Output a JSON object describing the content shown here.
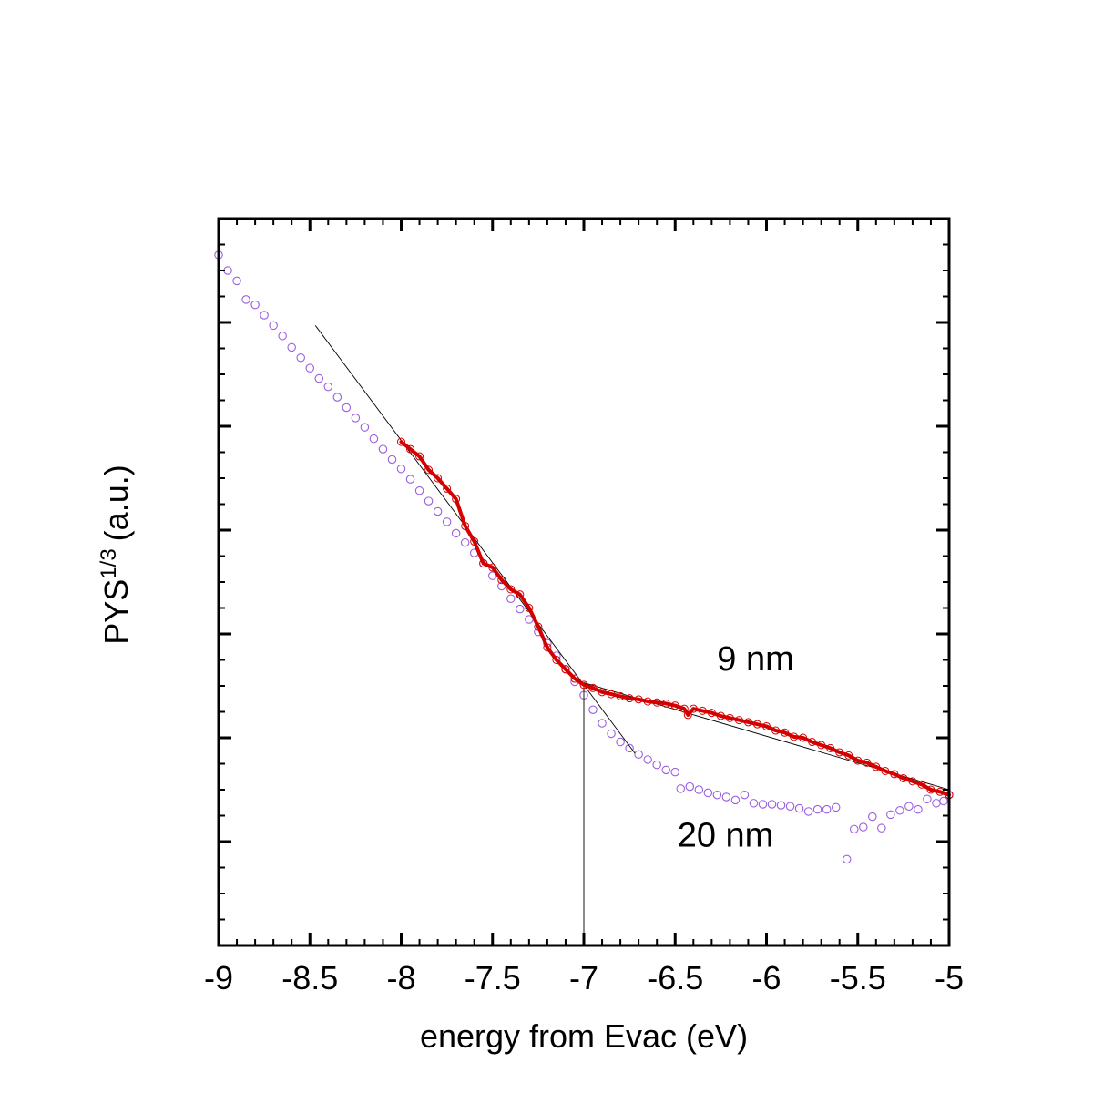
{
  "chart_data": {
    "type": "scatter",
    "title": "",
    "xlabel": "energy from Evac (eV)",
    "ylabel_main": "PYS",
    "ylabel_sup": "1/3",
    "ylabel_unit": "(a.u.)",
    "xlim": [
      -9,
      -5
    ],
    "ylim": [
      0,
      7
    ],
    "x_ticks": [
      -9,
      -8.5,
      -8,
      -7.5,
      -7,
      -6.5,
      -6,
      -5.5,
      -5
    ],
    "x_tick_labels": [
      "-9",
      "-8.5",
      "-8",
      "-7.5",
      "-7",
      "-6.5",
      "-6",
      "-5.5",
      "-5"
    ],
    "y_tick_labels_shown": false,
    "grid": false,
    "annotations": [
      "9 nm",
      "20 nm"
    ],
    "colors": {
      "nm9": "#d40000",
      "nm20": "#9a5fe0",
      "fit": "#000000"
    },
    "series": [
      {
        "name": "9 nm",
        "style": "line-with-markers",
        "points": [
          [
            -8.0,
            4.85
          ],
          [
            -7.95,
            4.78
          ],
          [
            -7.9,
            4.71
          ],
          [
            -7.85,
            4.58
          ],
          [
            -7.8,
            4.5
          ],
          [
            -7.75,
            4.4
          ],
          [
            -7.7,
            4.3
          ],
          [
            -7.65,
            4.04
          ],
          [
            -7.6,
            3.89
          ],
          [
            -7.55,
            3.68
          ],
          [
            -7.5,
            3.64
          ],
          [
            -7.45,
            3.52
          ],
          [
            -7.4,
            3.43
          ],
          [
            -7.35,
            3.38
          ],
          [
            -7.3,
            3.25
          ],
          [
            -7.25,
            3.07
          ],
          [
            -7.2,
            2.87
          ],
          [
            -7.15,
            2.75
          ],
          [
            -7.1,
            2.66
          ],
          [
            -7.05,
            2.57
          ],
          [
            -7.0,
            2.51
          ],
          [
            -6.95,
            2.48
          ],
          [
            -6.9,
            2.44
          ],
          [
            -6.85,
            2.42
          ],
          [
            -6.8,
            2.4
          ],
          [
            -6.75,
            2.38
          ],
          [
            -6.7,
            2.37
          ],
          [
            -6.65,
            2.35
          ],
          [
            -6.6,
            2.34
          ],
          [
            -6.55,
            2.33
          ],
          [
            -6.5,
            2.31
          ],
          [
            -6.45,
            2.28
          ],
          [
            -6.43,
            2.22
          ],
          [
            -6.4,
            2.28
          ],
          [
            -6.35,
            2.26
          ],
          [
            -6.3,
            2.24
          ],
          [
            -6.25,
            2.21
          ],
          [
            -6.2,
            2.19
          ],
          [
            -6.15,
            2.17
          ],
          [
            -6.1,
            2.15
          ],
          [
            -6.05,
            2.13
          ],
          [
            -6.0,
            2.11
          ],
          [
            -5.95,
            2.07
          ],
          [
            -5.9,
            2.05
          ],
          [
            -5.85,
            2.01
          ],
          [
            -5.8,
            2.0
          ],
          [
            -5.75,
            1.96
          ],
          [
            -5.7,
            1.93
          ],
          [
            -5.65,
            1.9
          ],
          [
            -5.6,
            1.86
          ],
          [
            -5.55,
            1.83
          ],
          [
            -5.5,
            1.78
          ],
          [
            -5.45,
            1.76
          ],
          [
            -5.4,
            1.72
          ],
          [
            -5.35,
            1.68
          ],
          [
            -5.3,
            1.65
          ],
          [
            -5.25,
            1.61
          ],
          [
            -5.2,
            1.58
          ],
          [
            -5.15,
            1.55
          ],
          [
            -5.1,
            1.5
          ],
          [
            -5.05,
            1.48
          ],
          [
            -5.0,
            1.45
          ]
        ]
      },
      {
        "name": "20 nm",
        "style": "open-circles",
        "points": [
          [
            -9.0,
            6.65
          ],
          [
            -8.95,
            6.5
          ],
          [
            -8.9,
            6.4
          ],
          [
            -8.85,
            6.22
          ],
          [
            -8.8,
            6.17
          ],
          [
            -8.75,
            6.07
          ],
          [
            -8.7,
            5.97
          ],
          [
            -8.65,
            5.87
          ],
          [
            -8.6,
            5.76
          ],
          [
            -8.55,
            5.66
          ],
          [
            -8.5,
            5.56
          ],
          [
            -8.45,
            5.46
          ],
          [
            -8.4,
            5.38
          ],
          [
            -8.35,
            5.28
          ],
          [
            -8.3,
            5.18
          ],
          [
            -8.25,
            5.08
          ],
          [
            -8.2,
            4.99
          ],
          [
            -8.15,
            4.88
          ],
          [
            -8.1,
            4.78
          ],
          [
            -8.05,
            4.68
          ],
          [
            -8.0,
            4.59
          ],
          [
            -7.95,
            4.49
          ],
          [
            -7.9,
            4.38
          ],
          [
            -7.85,
            4.28
          ],
          [
            -7.8,
            4.18
          ],
          [
            -7.75,
            4.08
          ],
          [
            -7.7,
            3.97
          ],
          [
            -7.65,
            3.88
          ],
          [
            -7.6,
            3.78
          ],
          [
            -7.55,
            3.68
          ],
          [
            -7.5,
            3.56
          ],
          [
            -7.45,
            3.46
          ],
          [
            -7.4,
            3.34
          ],
          [
            -7.35,
            3.24
          ],
          [
            -7.3,
            3.14
          ],
          [
            -7.25,
            3.02
          ],
          [
            -7.2,
            2.91
          ],
          [
            -7.15,
            2.79
          ],
          [
            -7.1,
            2.66
          ],
          [
            -7.05,
            2.54
          ],
          [
            -7.0,
            2.41
          ],
          [
            -6.95,
            2.27
          ],
          [
            -6.9,
            2.14
          ],
          [
            -6.85,
            2.04
          ],
          [
            -6.8,
            1.96
          ],
          [
            -6.75,
            1.9
          ],
          [
            -6.7,
            1.84
          ],
          [
            -6.65,
            1.79
          ],
          [
            -6.6,
            1.74
          ],
          [
            -6.55,
            1.69
          ],
          [
            -6.5,
            1.67
          ],
          [
            -6.47,
            1.51
          ],
          [
            -6.42,
            1.53
          ],
          [
            -6.37,
            1.5
          ],
          [
            -6.32,
            1.47
          ],
          [
            -6.27,
            1.45
          ],
          [
            -6.22,
            1.43
          ],
          [
            -6.17,
            1.4
          ],
          [
            -6.12,
            1.45
          ],
          [
            -6.07,
            1.37
          ],
          [
            -6.02,
            1.36
          ],
          [
            -5.97,
            1.36
          ],
          [
            -5.92,
            1.35
          ],
          [
            -5.87,
            1.34
          ],
          [
            -5.82,
            1.32
          ],
          [
            -5.77,
            1.29
          ],
          [
            -5.72,
            1.31
          ],
          [
            -5.67,
            1.31
          ],
          [
            -5.62,
            1.33
          ],
          [
            -5.56,
            0.83
          ],
          [
            -5.52,
            1.12
          ],
          [
            -5.47,
            1.14
          ],
          [
            -5.42,
            1.24
          ],
          [
            -5.37,
            1.13
          ],
          [
            -5.32,
            1.26
          ],
          [
            -5.27,
            1.3
          ],
          [
            -5.22,
            1.34
          ],
          [
            -5.17,
            1.31
          ],
          [
            -5.12,
            1.41
          ],
          [
            -5.07,
            1.37
          ],
          [
            -5.03,
            1.39
          ],
          [
            -5.0,
            1.45
          ]
        ]
      }
    ],
    "fit_lines": [
      {
        "x1": -8.47,
        "y1": 5.97,
        "x2": -6.72,
        "y2": 1.85
      },
      {
        "x1": -7.0,
        "y1": 2.53,
        "x2": -5.0,
        "y2": 1.5
      }
    ],
    "vertical_marker": {
      "x": -7.0,
      "y_from": 0,
      "y_to": 2.51
    },
    "annotation_positions": [
      {
        "text": "9 nm",
        "x": -6.0,
        "y": 2.65
      },
      {
        "text": "20 nm",
        "x": -6.0,
        "y": 0.95
      }
    ]
  }
}
